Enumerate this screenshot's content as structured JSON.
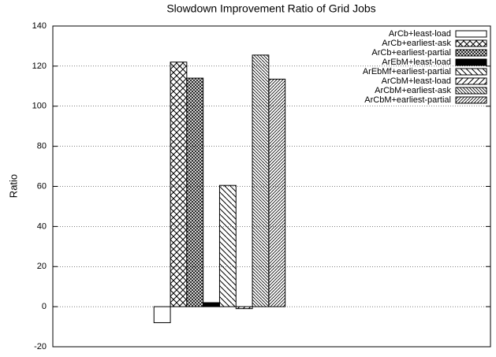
{
  "chart_data": {
    "type": "bar",
    "title": "Slowdown Improvement Ratio of Grid Jobs",
    "y_label": "Ratio",
    "categories": [
      null
    ],
    "series": [
      {
        "name": "ArCb+least-load",
        "color": "#000000",
        "pattern": "empty",
        "values": [
          -8
        ]
      },
      {
        "name": "ArCb+earliest-ask",
        "color": "#000000",
        "pattern": "cross",
        "values": [
          122
        ]
      },
      {
        "name": "ArCb+earliest-partial",
        "color": "#000000",
        "pattern": "dense-cross",
        "values": [
          114
        ]
      },
      {
        "name": "ArEbM+least-load",
        "color": "#000000",
        "pattern": "solid",
        "values": [
          2
        ]
      },
      {
        "name": "ArEbMf+earliest-partial",
        "color": "#000000",
        "pattern": "back-diagonal",
        "values": [
          60.5
        ]
      },
      {
        "name": "ArCbM+least-load",
        "color": "#000000",
        "pattern": "diagonal",
        "values": [
          -1
        ]
      },
      {
        "name": "ArCbM+earliest-ask",
        "color": "#000000",
        "pattern": "dense-back-diagonal",
        "values": [
          125.5
        ]
      },
      {
        "name": "ArCbM+earliest-partial",
        "color": "#000000",
        "pattern": "dense-diagonal",
        "values": [
          113.5
        ]
      }
    ],
    "ylim": [
      -20,
      140
    ],
    "yticks": [
      -20,
      0,
      20,
      40,
      60,
      80,
      100,
      120,
      140
    ],
    "grid": true,
    "legend": "top-right"
  }
}
